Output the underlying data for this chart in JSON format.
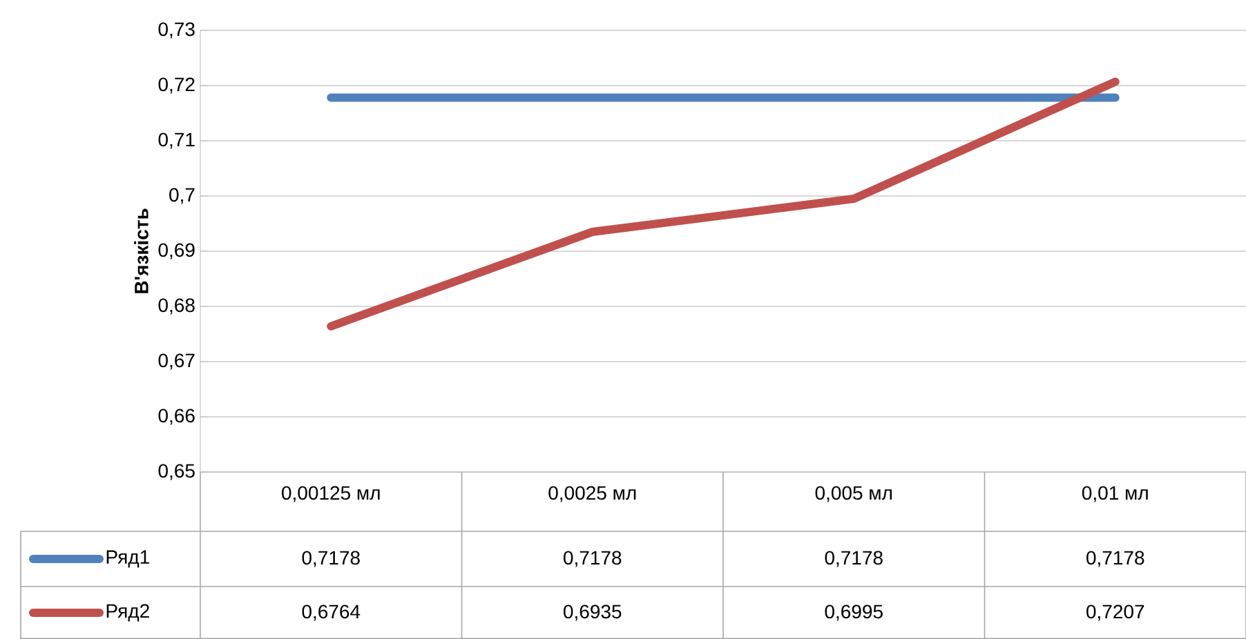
{
  "chart_data": {
    "type": "line",
    "ylabel": "В'язкість",
    "categories": [
      "0,00125 мл",
      "0,0025 мл",
      "0,005 мл",
      "0,01 мл"
    ],
    "series": [
      {
        "name": "Ряд1",
        "color": "#4f81bd",
        "values": [
          0.7178,
          0.7178,
          0.7178,
          0.7178
        ],
        "value_labels": [
          "0,7178",
          "0,7178",
          "0,7178",
          "0,7178"
        ]
      },
      {
        "name": "Ряд2",
        "color": "#c0504d",
        "values": [
          0.6764,
          0.6935,
          0.6995,
          0.7207
        ],
        "value_labels": [
          "0,6764",
          "0,6935",
          "0,6995",
          "0,7207"
        ]
      }
    ],
    "ylim": [
      0.65,
      0.73
    ],
    "yticks": [
      {
        "value": 0.65,
        "label": "0,65"
      },
      {
        "value": 0.66,
        "label": "0,66"
      },
      {
        "value": 0.67,
        "label": "0,67"
      },
      {
        "value": 0.68,
        "label": "0,68"
      },
      {
        "value": 0.69,
        "label": "0,69"
      },
      {
        "value": 0.7,
        "label": "0,7"
      },
      {
        "value": 0.71,
        "label": "0,71"
      },
      {
        "value": 0.72,
        "label": "0,72"
      },
      {
        "value": 0.73,
        "label": "0,73"
      }
    ],
    "grid": "y",
    "legend": "bottom",
    "marker": "none",
    "line_style": "solid"
  }
}
